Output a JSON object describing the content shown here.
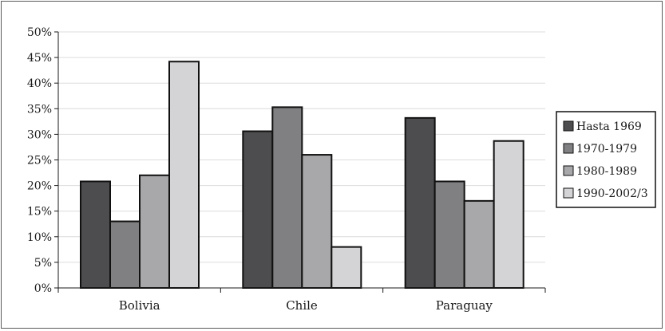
{
  "chart_data": {
    "type": "bar",
    "title": "",
    "xlabel": "",
    "ylabel": "",
    "categories": [
      "Bolivia",
      "Chile",
      "Paraguay"
    ],
    "series": [
      {
        "name": "Hasta 1969",
        "color": "#4d4d4f",
        "values": [
          20.8,
          30.6,
          33.2
        ]
      },
      {
        "name": "1970-1979",
        "color": "#808082",
        "values": [
          13.0,
          35.3,
          20.8
        ]
      },
      {
        "name": "1980-1989",
        "color": "#a8a8aa",
        "values": [
          22.0,
          26.0,
          17.0
        ]
      },
      {
        "name": "1990-2002/3",
        "color": "#d4d4d6",
        "values": [
          44.2,
          8.0,
          28.7
        ]
      }
    ],
    "ylim": [
      0,
      50
    ],
    "yticks": [
      "0%",
      "5%",
      "10%",
      "15%",
      "20%",
      "25%",
      "30%",
      "35%",
      "40%",
      "45%",
      "50%"
    ],
    "grid": true,
    "legend_position": "right"
  }
}
